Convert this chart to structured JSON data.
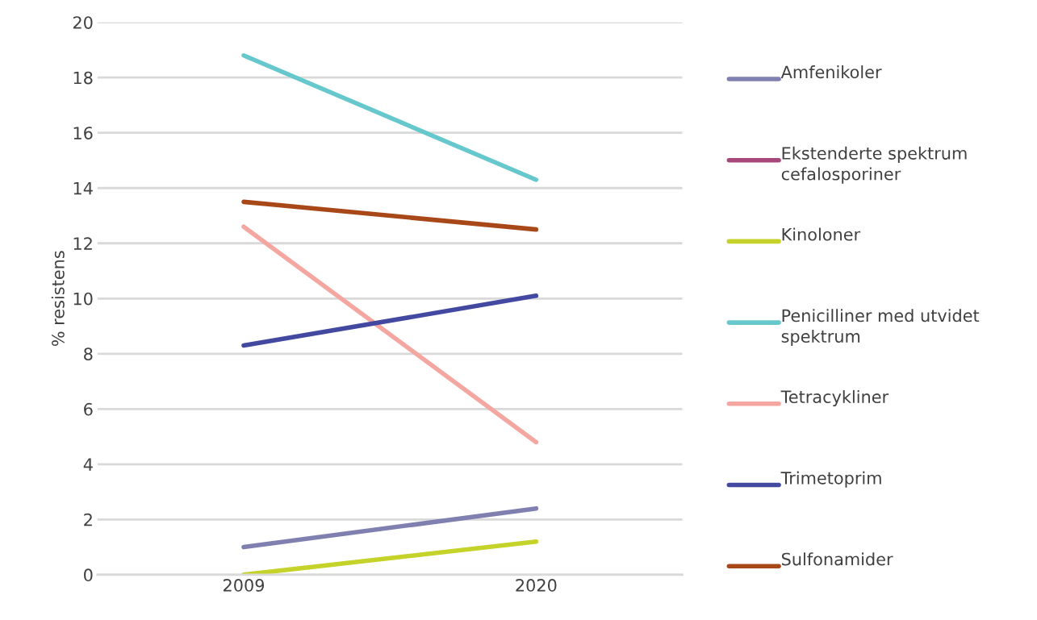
{
  "chart_data": {
    "type": "line",
    "ylabel": "% resistens",
    "categories": [
      "2009",
      "2020"
    ],
    "series": [
      {
        "name": "Amfenikoler",
        "color": "#8080b0",
        "values": [
          1.0,
          2.4
        ]
      },
      {
        "name": "Ekstenderte spektrum cefalosporiner",
        "color": "#a8487a",
        "values": [
          null,
          null
        ]
      },
      {
        "name": "Kinoloner",
        "color": "#c4d22a",
        "values": [
          0,
          1.2
        ]
      },
      {
        "name": "Penicilliner med utvidet spektrum",
        "color": "#66c8cc",
        "values": [
          18.8,
          14.3
        ]
      },
      {
        "name": "Tetracykliner",
        "color": "#f4a6a0",
        "values": [
          12.6,
          4.8
        ]
      },
      {
        "name": "Trimetoprim",
        "color": "#4348a0",
        "values": [
          8.3,
          10.1
        ]
      },
      {
        "name": "Sulfonamider",
        "color": "#a84818",
        "values": [
          13.5,
          12.5
        ]
      }
    ],
    "ylim": [
      0,
      20
    ],
    "yticks": [
      0,
      2,
      4,
      6,
      8,
      10,
      12,
      14,
      16,
      18,
      20
    ],
    "grid": "y",
    "legend": "right",
    "marker": "none",
    "line_style": "solid"
  }
}
